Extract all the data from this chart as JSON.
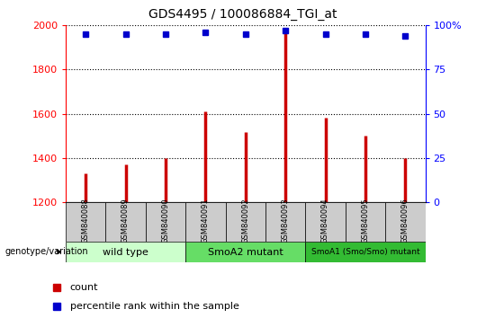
{
  "title": "GDS4495 / 100086884_TGI_at",
  "samples": [
    "GSM840088",
    "GSM840089",
    "GSM840090",
    "GSM840091",
    "GSM840092",
    "GSM840093",
    "GSM840094",
    "GSM840095",
    "GSM840096"
  ],
  "counts": [
    1330,
    1370,
    1400,
    1610,
    1515,
    1990,
    1580,
    1500,
    1400
  ],
  "percentile_ranks": [
    95,
    95,
    95,
    96,
    95,
    97,
    95,
    95,
    94
  ],
  "ylim_left": [
    1200,
    2000
  ],
  "ylim_right": [
    0,
    100
  ],
  "yticks_left": [
    1200,
    1400,
    1600,
    1800,
    2000
  ],
  "yticks_right": [
    0,
    25,
    50,
    75,
    100
  ],
  "bar_color": "#cc0000",
  "dot_color": "#0000cc",
  "groups": [
    {
      "label": "wild type",
      "start": 0,
      "end": 3,
      "color": "#ccffcc"
    },
    {
      "label": "SmoA2 mutant",
      "start": 3,
      "end": 6,
      "color": "#66dd66"
    },
    {
      "label": "SmoA1 (Smo/Smo) mutant",
      "start": 6,
      "end": 9,
      "color": "#33bb33"
    }
  ],
  "genotype_label": "genotype/variation",
  "legend_count_label": "count",
  "legend_percentile_label": "percentile rank within the sample"
}
